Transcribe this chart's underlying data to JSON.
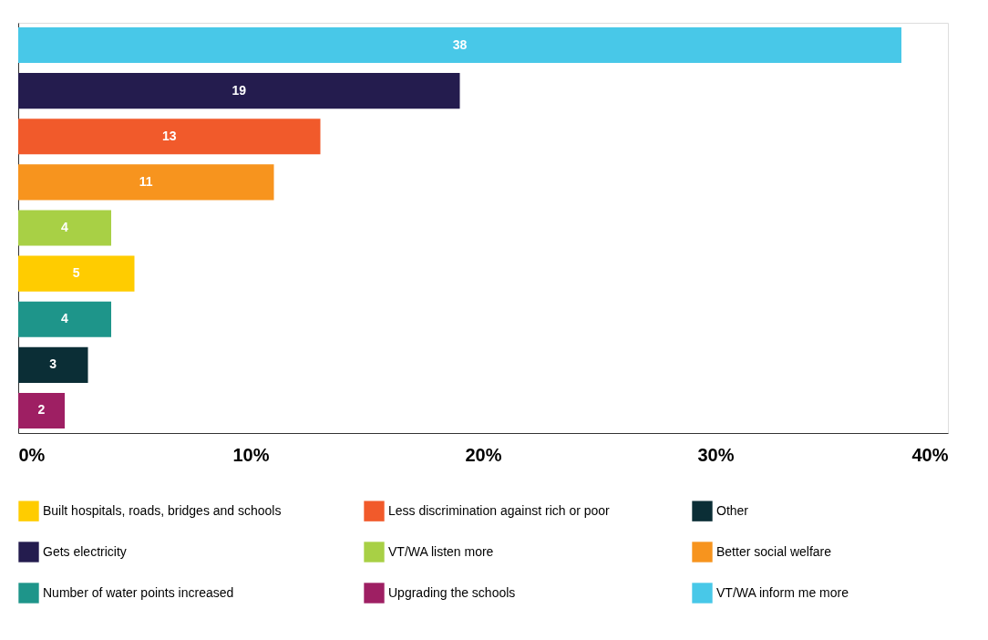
{
  "chart_data": {
    "type": "bar",
    "orientation": "horizontal",
    "categories": [
      null,
      null,
      null,
      null,
      null,
      null,
      null,
      null,
      null
    ],
    "series": [
      {
        "name": "Built hospitals, roads, bridges and schools",
        "color": "#ffcc00",
        "values": [
          null,
          null,
          null,
          null,
          null,
          5,
          null,
          null,
          null
        ]
      },
      {
        "name": "Less discrimination against rich or poor",
        "color": "#f15a2b",
        "values": [
          null,
          null,
          13,
          null,
          null,
          null,
          null,
          null,
          null
        ]
      },
      {
        "name": "Other",
        "color": "#0b2e36",
        "values": [
          null,
          null,
          null,
          null,
          null,
          null,
          null,
          3,
          null
        ]
      },
      {
        "name": "Gets electricity",
        "color": "#241c4e",
        "values": [
          null,
          19,
          null,
          null,
          null,
          null,
          null,
          null,
          null
        ]
      },
      {
        "name": "VT/WA listen more",
        "color": "#a8d045",
        "values": [
          null,
          null,
          null,
          null,
          4,
          null,
          null,
          null,
          null
        ]
      },
      {
        "name": "Better social welfare",
        "color": "#f7941e",
        "values": [
          null,
          null,
          null,
          11,
          null,
          null,
          null,
          null,
          null
        ]
      },
      {
        "name": "Number of water points increased",
        "color": "#1e958a",
        "values": [
          null,
          null,
          null,
          null,
          null,
          null,
          4,
          null,
          null
        ]
      },
      {
        "name": "Upgrading the schools",
        "color": "#9e1f63",
        "values": [
          null,
          null,
          null,
          null,
          null,
          null,
          null,
          null,
          2
        ]
      },
      {
        "name": "VT/WA inform me more",
        "color": "#48c8e8",
        "values": [
          38,
          null,
          null,
          null,
          null,
          null,
          null,
          null,
          null
        ]
      }
    ],
    "xlim": [
      0,
      40
    ],
    "xticks": [
      {
        "value": 0,
        "label": "0%"
      },
      {
        "value": 10,
        "label": "10%"
      },
      {
        "value": 20,
        "label": "20%"
      },
      {
        "value": 30,
        "label": "30%"
      },
      {
        "value": 40,
        "label": "40%"
      }
    ],
    "data_labels": true,
    "grid": false,
    "legend": "bottom",
    "tick_labels": "x"
  }
}
